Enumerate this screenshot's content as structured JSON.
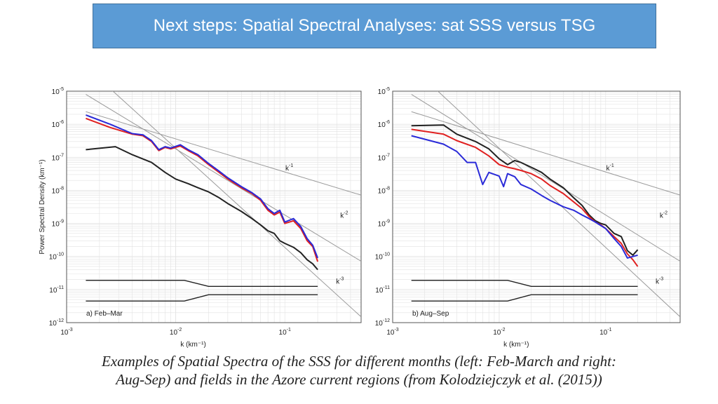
{
  "header": {
    "title": "Next steps: Spatial Spectral Analyses: sat SSS versus TSG"
  },
  "caption": {
    "line1": "Examples of Spatial Spectra of the SSS for different months (left: Feb-March and right:",
    "line2": "Aug-Sep) and fields in the Azore current regions (from Kolodziejczyk et al. (2015))"
  },
  "colors": {
    "black": "#222222",
    "red": "#e02020",
    "blue": "#2a2ad8",
    "slope": "#9a9a9a",
    "grid": "#e2e2e2"
  },
  "chart_data": [
    {
      "type": "line",
      "panel_label": "a) Feb–Mar",
      "xlabel": "k (km⁻¹)",
      "ylabel": "Power Spectral Density (km⁻¹)",
      "xscale": "log",
      "yscale": "log",
      "xlim": [
        0.001,
        0.5
      ],
      "ylim": [
        1e-12,
        1e-05
      ],
      "xticks": [
        {
          "v": 0.001,
          "b": "10",
          "e": "-3"
        },
        {
          "v": 0.01,
          "b": "10",
          "e": "-2"
        },
        {
          "v": 0.1,
          "b": "10",
          "e": "-1"
        }
      ],
      "yticks": [
        {
          "v": 1e-12,
          "b": "10",
          "e": "-12"
        },
        {
          "v": 1e-11,
          "b": "10",
          "e": "-11"
        },
        {
          "v": 1e-10,
          "b": "10",
          "e": "-10"
        },
        {
          "v": 1e-09,
          "b": "10",
          "e": "-9"
        },
        {
          "v": 1e-08,
          "b": "10",
          "e": "-8"
        },
        {
          "v": 1e-07,
          "b": "10",
          "e": "-7"
        },
        {
          "v": 1e-06,
          "b": "10",
          "e": "-6"
        },
        {
          "v": 1e-05,
          "b": "10",
          "e": "-5"
        }
      ],
      "slopes": [
        {
          "label": "k",
          "exp": "-1",
          "x": [
            0.0015,
            0.5
          ],
          "y": [
            2.4e-06,
            7.2e-09
          ],
          "label_at": [
            0.11,
            4e-08
          ]
        },
        {
          "label": "k",
          "exp": "-2",
          "x": [
            0.0015,
            0.5
          ],
          "y": [
            8e-06,
            7.2e-11
          ],
          "label_at": [
            0.35,
            1.5e-09
          ]
        },
        {
          "label": "k",
          "exp": "-3",
          "x": [
            0.0016,
            0.5
          ],
          "y": [
            4.6e-05,
            1.5e-12
          ],
          "label_at": [
            0.32,
            1.5e-11
          ]
        }
      ],
      "series": [
        {
          "name": "black",
          "color": "#222222",
          "x": [
            0.0015,
            0.0028,
            0.004,
            0.006,
            0.008,
            0.01,
            0.013,
            0.016,
            0.02,
            0.025,
            0.03,
            0.04,
            0.05,
            0.06,
            0.07,
            0.08,
            0.09,
            0.1,
            0.12,
            0.14,
            0.16,
            0.18,
            0.2
          ],
          "y": [
            1.7e-07,
            2.1e-07,
            1.2e-07,
            7e-08,
            3.5e-08,
            2.2e-08,
            1.6e-08,
            1.2e-08,
            9e-09,
            6e-09,
            4e-09,
            2.3e-09,
            1.4e-09,
            9e-10,
            6e-10,
            5e-10,
            3e-10,
            2.5e-10,
            1.9e-10,
            1.3e-10,
            8e-11,
            6e-11,
            4e-11
          ]
        },
        {
          "name": "red",
          "color": "#e02020",
          "x": [
            0.0015,
            0.0025,
            0.004,
            0.005,
            0.006,
            0.007,
            0.008,
            0.009,
            0.011,
            0.013,
            0.016,
            0.02,
            0.025,
            0.03,
            0.04,
            0.05,
            0.06,
            0.07,
            0.08,
            0.09,
            0.1,
            0.12,
            0.14,
            0.16,
            0.18,
            0.2
          ],
          "y": [
            1.5e-06,
            8e-07,
            5e-07,
            4.5e-07,
            3e-07,
            1.6e-07,
            2e-07,
            1.8e-07,
            2.2e-07,
            1.6e-07,
            1.1e-07,
            6e-08,
            3.5e-08,
            2.2e-08,
            1.2e-08,
            8e-09,
            5e-09,
            2.5e-09,
            1.8e-09,
            2.2e-09,
            1e-09,
            1.2e-09,
            7e-10,
            3e-10,
            2e-10,
            7e-11
          ]
        },
        {
          "name": "blue",
          "color": "#2a2ad8",
          "x": [
            0.0015,
            0.0025,
            0.004,
            0.005,
            0.006,
            0.007,
            0.008,
            0.009,
            0.011,
            0.013,
            0.016,
            0.02,
            0.025,
            0.03,
            0.04,
            0.05,
            0.06,
            0.07,
            0.08,
            0.09,
            0.1,
            0.12,
            0.14,
            0.16,
            0.18,
            0.2
          ],
          "y": [
            1.9e-06,
            1e-06,
            5.2e-07,
            4.8e-07,
            3.2e-07,
            1.7e-07,
            2.1e-07,
            1.9e-07,
            2.4e-07,
            1.7e-07,
            1.2e-07,
            6.5e-08,
            3.8e-08,
            2.4e-08,
            1.3e-08,
            8.5e-09,
            5.5e-09,
            2.8e-09,
            2e-09,
            2.5e-09,
            1.1e-09,
            1.4e-09,
            8e-10,
            3.5e-10,
            2.2e-10,
            9e-11
          ]
        }
      ],
      "bands": [
        {
          "x": [
            0.0015,
            0.012,
            0.02,
            0.2
          ],
          "y": [
            1.9e-11,
            1.9e-11,
            1.25e-11,
            1.25e-11
          ]
        },
        {
          "x": [
            0.0015,
            0.012,
            0.02,
            0.2
          ],
          "y": [
            4.5e-12,
            4.5e-12,
            7e-12,
            7e-12
          ]
        }
      ]
    },
    {
      "type": "line",
      "panel_label": "b) Aug–Sep",
      "xlabel": "k (km⁻¹)",
      "ylabel": "",
      "xscale": "log",
      "yscale": "log",
      "xlim": [
        0.001,
        0.5
      ],
      "ylim": [
        1e-12,
        1e-05
      ],
      "xticks": [
        {
          "v": 0.001,
          "b": "10",
          "e": "-3"
        },
        {
          "v": 0.01,
          "b": "10",
          "e": "-2"
        },
        {
          "v": 0.1,
          "b": "10",
          "e": "-1"
        }
      ],
      "yticks": [
        {
          "v": 1e-12,
          "b": "10",
          "e": "-12"
        },
        {
          "v": 1e-11,
          "b": "10",
          "e": "-11"
        },
        {
          "v": 1e-10,
          "b": "10",
          "e": "-10"
        },
        {
          "v": 1e-09,
          "b": "10",
          "e": "-9"
        },
        {
          "v": 1e-08,
          "b": "10",
          "e": "-8"
        },
        {
          "v": 1e-07,
          "b": "10",
          "e": "-7"
        },
        {
          "v": 1e-06,
          "b": "10",
          "e": "-6"
        },
        {
          "v": 1e-05,
          "b": "10",
          "e": "-5"
        }
      ],
      "slopes": [
        {
          "label": "k",
          "exp": "-1",
          "x": [
            0.0015,
            0.5
          ],
          "y": [
            2.4e-06,
            7.2e-09
          ],
          "label_at": [
            0.11,
            4e-08
          ]
        },
        {
          "label": "k",
          "exp": "-2",
          "x": [
            0.0015,
            0.5
          ],
          "y": [
            8e-06,
            7.2e-11
          ],
          "label_at": [
            0.35,
            1.5e-09
          ]
        },
        {
          "label": "k",
          "exp": "-3",
          "x": [
            0.0016,
            0.5
          ],
          "y": [
            4.6e-05,
            1.5e-12
          ],
          "label_at": [
            0.32,
            1.5e-11
          ]
        }
      ],
      "series": [
        {
          "name": "black",
          "color": "#222222",
          "x": [
            0.0015,
            0.003,
            0.004,
            0.006,
            0.008,
            0.01,
            0.012,
            0.014,
            0.016,
            0.02,
            0.025,
            0.03,
            0.04,
            0.05,
            0.06,
            0.07,
            0.08,
            0.09,
            0.1,
            0.12,
            0.14,
            0.16,
            0.18,
            0.2
          ],
          "y": [
            9e-07,
            9.5e-07,
            5e-07,
            3e-07,
            1.8e-07,
            9e-08,
            6e-08,
            8e-08,
            7e-08,
            5e-08,
            3.5e-08,
            2.2e-08,
            1.2e-08,
            6e-09,
            3.5e-09,
            1.8e-09,
            1.2e-09,
            1e-09,
            9e-10,
            5e-10,
            4e-10,
            1.5e-10,
            1.1e-10,
            1.6e-10
          ]
        },
        {
          "name": "red",
          "color": "#e02020",
          "x": [
            0.0015,
            0.003,
            0.004,
            0.006,
            0.008,
            0.01,
            0.012,
            0.014,
            0.016,
            0.02,
            0.025,
            0.03,
            0.04,
            0.05,
            0.06,
            0.07,
            0.08,
            0.09,
            0.1,
            0.12,
            0.14,
            0.16,
            0.18,
            0.2
          ],
          "y": [
            7e-07,
            5e-07,
            3.2e-07,
            2e-07,
            1.1e-07,
            6e-08,
            5e-08,
            4.5e-08,
            4e-08,
            3.2e-08,
            2.2e-08,
            1.4e-08,
            8e-09,
            4.5e-09,
            2.8e-09,
            1.6e-09,
            1.1e-09,
            9e-10,
            7e-10,
            4e-10,
            2.5e-10,
            1.2e-10,
            8e-11,
            5e-11
          ]
        },
        {
          "name": "blue",
          "color": "#2a2ad8",
          "x": [
            0.0015,
            0.003,
            0.004,
            0.005,
            0.006,
            0.007,
            0.008,
            0.01,
            0.011,
            0.012,
            0.014,
            0.016,
            0.02,
            0.025,
            0.03,
            0.04,
            0.05,
            0.06,
            0.07,
            0.08,
            0.1,
            0.12,
            0.14,
            0.16,
            0.18,
            0.2
          ],
          "y": [
            4.5e-07,
            2.5e-07,
            1.5e-07,
            7e-08,
            7e-08,
            1.5e-08,
            3.5e-08,
            2.7e-08,
            1.3e-08,
            3.2e-08,
            2.6e-08,
            1.5e-08,
            1.1e-08,
            7e-09,
            5e-09,
            3.2e-09,
            2.5e-09,
            1.8e-09,
            1.4e-09,
            1.1e-09,
            7e-10,
            3.5e-10,
            2e-10,
            9e-11,
            1e-10,
            1.1e-10
          ]
        }
      ],
      "bands": [
        {
          "x": [
            0.0015,
            0.012,
            0.02,
            0.2
          ],
          "y": [
            1.9e-11,
            1.9e-11,
            1.25e-11,
            1.25e-11
          ]
        },
        {
          "x": [
            0.0015,
            0.012,
            0.02,
            0.2
          ],
          "y": [
            4.5e-12,
            4.5e-12,
            7e-12,
            7e-12
          ]
        }
      ]
    }
  ]
}
